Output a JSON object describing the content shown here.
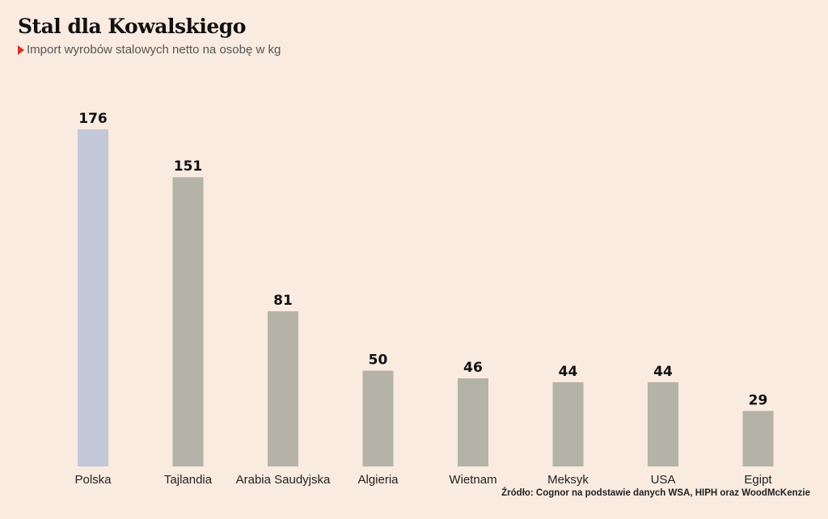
{
  "header": {
    "title": "Stal dla Kowalskiego",
    "subtitle": "Import wyrobów stalowych netto na osobę w kg",
    "marker_color": "#d6322b"
  },
  "source": "Źródło: Cognor na podstawie danych WSA, HIPH oraz WoodMcKenzie",
  "chart_data": {
    "type": "bar",
    "title": "Stal dla Kowalskiego",
    "subtitle": "Import wyrobów stalowych netto na osobę w kg",
    "categories": [
      "Polska",
      "Tajlandia",
      "Arabia Saudyjska",
      "Algieria",
      "Wietnam",
      "Meksyk",
      "USA",
      "Egipt"
    ],
    "values": [
      176,
      151,
      81,
      50,
      46,
      44,
      44,
      29
    ],
    "highlight_category": "Polska",
    "colors": {
      "highlight": "#c3c8d9",
      "default": "#b5b3a8",
      "background": "#f9ebe0"
    },
    "ylim": [
      0,
      176
    ],
    "grid": false,
    "legend": "none",
    "data_labels": true
  }
}
